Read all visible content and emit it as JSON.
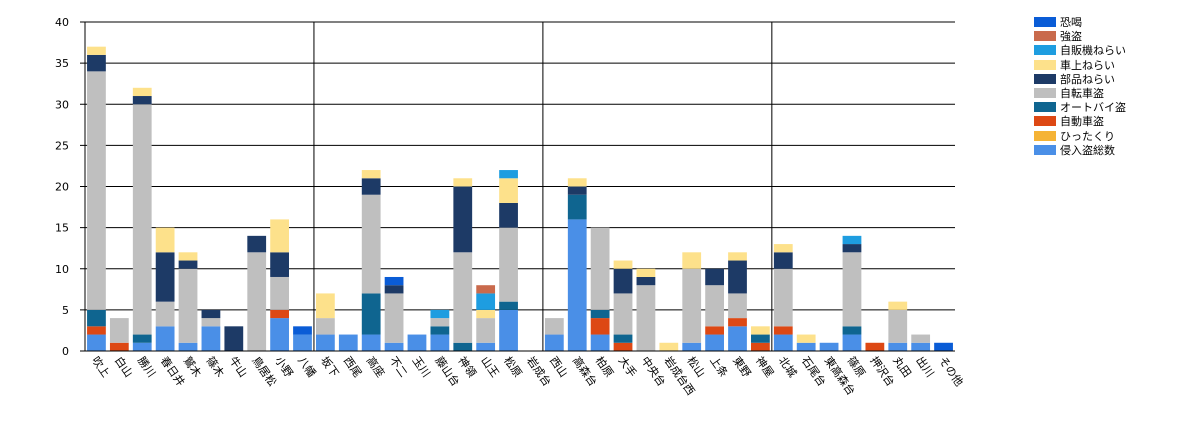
{
  "chart_data": {
    "type": "bar",
    "stacked": true,
    "ylim": [
      0,
      40
    ],
    "yticks": [
      0,
      5,
      10,
      15,
      20,
      25,
      30,
      35,
      40
    ],
    "grid": true,
    "legend_position": "right",
    "categories": [
      "吹上",
      "白山",
      "勝川",
      "春日井",
      "鷲木",
      "篠木",
      "牛山",
      "鳥居松",
      "小野",
      "八幡",
      "坂下",
      "西尾",
      "高座",
      "不二",
      "玉川",
      "藤山台",
      "神領",
      "山王",
      "松原",
      "岩成台",
      "西山",
      "高森台",
      "柏原",
      "大手",
      "中央台",
      "岩成台西",
      "松山",
      "上条",
      "東野",
      "神屋",
      "北城",
      "石尾台",
      "東高森台",
      "篠原",
      "押沢台",
      "丸田",
      "出川",
      "その他"
    ],
    "series": [
      {
        "name": "侵入盗総数",
        "color": "#4a8fe7",
        "values": [
          2,
          0,
          1,
          3,
          1,
          3,
          0,
          0,
          4,
          2,
          2,
          2,
          2,
          1,
          2,
          2,
          0,
          1,
          5,
          0,
          2,
          16,
          2,
          0,
          0,
          0,
          1,
          2,
          3,
          0,
          2,
          1,
          1,
          2,
          0,
          1,
          1,
          0
        ]
      },
      {
        "name": "ひったくり",
        "color": "#f5b335",
        "values": [
          0,
          0,
          0,
          0,
          0,
          0,
          0,
          0,
          0,
          0,
          0,
          0,
          0,
          0,
          0,
          0,
          0,
          0,
          0,
          0,
          0,
          0,
          0,
          0,
          0,
          0,
          0,
          0,
          0,
          0,
          0,
          0,
          0,
          0,
          0,
          0,
          0,
          0
        ]
      },
      {
        "name": "自動車盗",
        "color": "#dd4814",
        "values": [
          1,
          1,
          0,
          0,
          0,
          0,
          0,
          0,
          1,
          0,
          0,
          0,
          0,
          0,
          0,
          0,
          0,
          0,
          0,
          0,
          0,
          0,
          2,
          1,
          0,
          0,
          0,
          1,
          1,
          1,
          1,
          0,
          0,
          0,
          1,
          0,
          0,
          0
        ]
      },
      {
        "name": "オートバイ盗",
        "color": "#0f6590",
        "values": [
          2,
          0,
          1,
          0,
          0,
          0,
          0,
          0,
          0,
          0,
          0,
          0,
          5,
          0,
          0,
          1,
          1,
          0,
          1,
          0,
          0,
          3,
          1,
          1,
          0,
          0,
          0,
          0,
          0,
          1,
          0,
          0,
          0,
          1,
          0,
          0,
          0,
          0
        ]
      },
      {
        "name": "自転車盗",
        "color": "#bfbfbf",
        "values": [
          29,
          3,
          28,
          3,
          9,
          1,
          0,
          12,
          4,
          0,
          2,
          0,
          12,
          6,
          0,
          1,
          11,
          3,
          9,
          0,
          2,
          0,
          10,
          5,
          8,
          0,
          9,
          5,
          3,
          0,
          7,
          0,
          0,
          9,
          0,
          4,
          1,
          0
        ]
      },
      {
        "name": "部品ねらい",
        "color": "#1d3a66",
        "values": [
          2,
          0,
          1,
          6,
          1,
          1,
          3,
          2,
          3,
          0,
          0,
          0,
          2,
          1,
          0,
          0,
          8,
          0,
          3,
          0,
          0,
          1,
          0,
          3,
          1,
          0,
          0,
          2,
          4,
          0,
          2,
          0,
          0,
          1,
          0,
          0,
          0,
          0
        ]
      },
      {
        "name": "車上ねらい",
        "color": "#fde18b",
        "values": [
          1,
          0,
          1,
          3,
          1,
          0,
          0,
          0,
          4,
          0,
          3,
          0,
          1,
          0,
          0,
          0,
          1,
          1,
          3,
          0,
          0,
          1,
          0,
          1,
          1,
          1,
          2,
          0,
          1,
          1,
          1,
          1,
          0,
          0,
          0,
          1,
          0,
          0
        ]
      },
      {
        "name": "自販機ねらい",
        "color": "#1e9de0",
        "values": [
          0,
          0,
          0,
          0,
          0,
          0,
          0,
          0,
          0,
          0,
          0,
          0,
          0,
          0,
          0,
          1,
          0,
          2,
          1,
          0,
          0,
          0,
          0,
          0,
          0,
          0,
          0,
          0,
          0,
          0,
          0,
          0,
          0,
          1,
          0,
          0,
          0,
          0
        ]
      },
      {
        "name": "強盗",
        "color": "#c96a4c",
        "values": [
          0,
          0,
          0,
          0,
          0,
          0,
          0,
          0,
          0,
          0,
          0,
          0,
          0,
          0,
          0,
          0,
          0,
          1,
          0,
          0,
          0,
          0,
          0,
          0,
          0,
          0,
          0,
          0,
          0,
          0,
          0,
          0,
          0,
          0,
          0,
          0,
          0,
          0
        ]
      },
      {
        "name": "恐喝",
        "color": "#0a5cd6",
        "values": [
          0,
          0,
          0,
          0,
          0,
          0,
          0,
          0,
          0,
          1,
          0,
          0,
          0,
          1,
          0,
          0,
          0,
          0,
          0,
          0,
          0,
          0,
          0,
          0,
          0,
          0,
          0,
          0,
          0,
          0,
          0,
          0,
          0,
          0,
          0,
          0,
          0,
          1
        ]
      }
    ],
    "legend_order": [
      "恐喝",
      "強盗",
      "自販機ねらい",
      "車上ねらい",
      "部品ねらい",
      "自転車盗",
      "オートバイ盗",
      "自動車盗",
      "ひったくり",
      "侵入盗総数"
    ]
  }
}
